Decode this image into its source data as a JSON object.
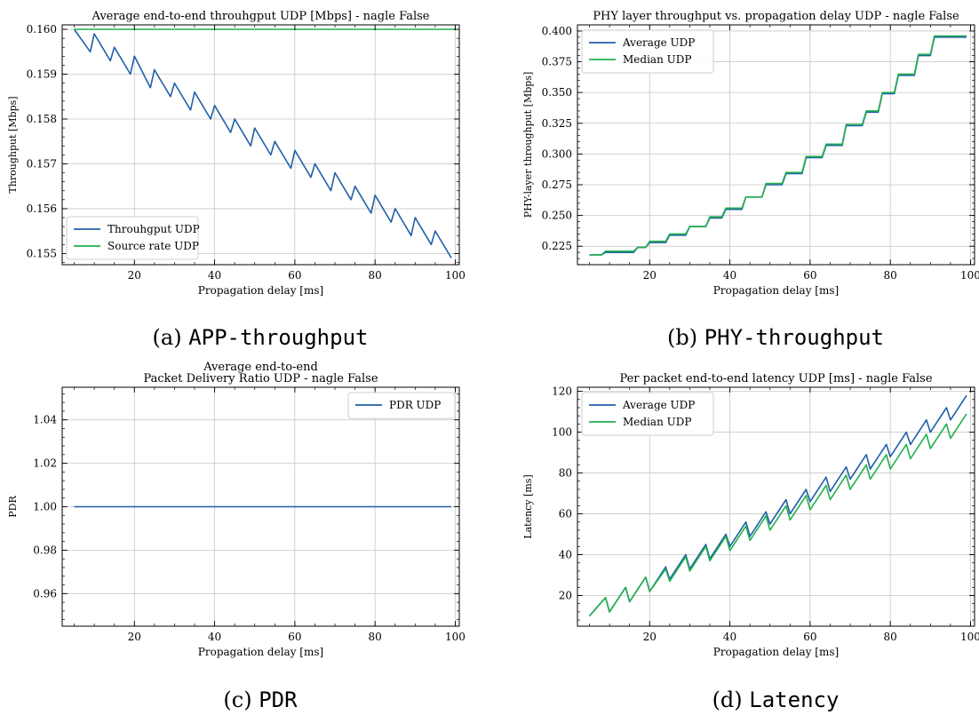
{
  "chart_data": [
    {
      "type": "line",
      "title": "Average end-to-end throuhgput UDP [Mbps] - nagle False",
      "caption_prefix": "(a)",
      "caption_code": "APP-throughput",
      "xlabel": "Propagation delay [ms]",
      "ylabel": "Throughput [Mbps]",
      "xlim": [
        2,
        101
      ],
      "ylim": [
        0.15475,
        0.1601
      ],
      "xticks": [
        20,
        40,
        60,
        80,
        100
      ],
      "yticks": [
        0.155,
        0.156,
        0.157,
        0.158,
        0.159,
        0.16
      ],
      "ytick_labels": [
        "0.155",
        "0.156",
        "0.157",
        "0.158",
        "0.159",
        "0.160"
      ],
      "grid": true,
      "legend_position": "lower-left",
      "series": [
        {
          "name": "Throuhgput UDP",
          "color": "#1f5fa8",
          "x": [
            5,
            9,
            10,
            14,
            15,
            19,
            20,
            24,
            25,
            29,
            30,
            34,
            35,
            39,
            40,
            44,
            45,
            49,
            50,
            54,
            55,
            59,
            60,
            64,
            65,
            69,
            70,
            74,
            75,
            79,
            80,
            84,
            85,
            89,
            90,
            94,
            95,
            99
          ],
          "y": [
            0.16,
            0.1595,
            0.1599,
            0.1593,
            0.1596,
            0.159,
            0.1594,
            0.1587,
            0.1591,
            0.1585,
            0.1588,
            0.1582,
            0.1586,
            0.158,
            0.1583,
            0.1577,
            0.158,
            0.1574,
            0.1578,
            0.1572,
            0.1575,
            0.1569,
            0.1573,
            0.1567,
            0.157,
            0.1564,
            0.1568,
            0.1562,
            0.1565,
            0.1559,
            0.1563,
            0.1557,
            0.156,
            0.1554,
            0.1558,
            0.1552,
            0.1555,
            0.1549
          ]
        },
        {
          "name": "Source rate UDP",
          "color": "#22b14c",
          "x": [
            5,
            100
          ],
          "y": [
            0.16,
            0.16
          ]
        }
      ]
    },
    {
      "type": "line",
      "title": "PHY layer throughput vs. propagation delay UDP - nagle False",
      "caption_prefix": "(b)",
      "caption_code": "PHY-throughput",
      "xlabel": "Propagation delay [ms]",
      "ylabel": "PHY-layer throughput [Mbps]",
      "xlim": [
        2,
        101
      ],
      "ylim": [
        0.21,
        0.405
      ],
      "xticks": [
        20,
        40,
        60,
        80,
        100
      ],
      "yticks": [
        0.225,
        0.25,
        0.275,
        0.3,
        0.325,
        0.35,
        0.375,
        0.4
      ],
      "ytick_labels": [
        "0.225",
        "0.250",
        "0.275",
        "0.300",
        "0.325",
        "0.350",
        "0.375",
        "0.400"
      ],
      "grid": true,
      "legend_position": "top-left",
      "series": [
        {
          "name": "Average UDP",
          "color": "#1f5fa8",
          "x": [
            5,
            8,
            9,
            13,
            14,
            16,
            17,
            19,
            20,
            24,
            25,
            29,
            30,
            34,
            35,
            38,
            39,
            43,
            44,
            48,
            49,
            53,
            54,
            58,
            59,
            63,
            64,
            68,
            69,
            73,
            74,
            77,
            78,
            81,
            82,
            86,
            87,
            90,
            91,
            95,
            96,
            99
          ],
          "y": [
            0.218,
            0.218,
            0.22,
            0.22,
            0.22,
            0.22,
            0.224,
            0.224,
            0.228,
            0.228,
            0.234,
            0.234,
            0.241,
            0.241,
            0.248,
            0.248,
            0.255,
            0.255,
            0.265,
            0.265,
            0.275,
            0.275,
            0.284,
            0.284,
            0.297,
            0.297,
            0.307,
            0.307,
            0.323,
            0.323,
            0.334,
            0.334,
            0.349,
            0.349,
            0.364,
            0.364,
            0.38,
            0.38,
            0.395,
            0.395,
            0.395,
            0.395
          ]
        },
        {
          "name": "Median UDP",
          "color": "#22b14c",
          "x": [
            5,
            8,
            9,
            13,
            14,
            16,
            17,
            19,
            20,
            24,
            25,
            29,
            30,
            34,
            35,
            38,
            39,
            43,
            44,
            48,
            49,
            53,
            54,
            58,
            59,
            63,
            64,
            68,
            69,
            73,
            74,
            77,
            78,
            81,
            82,
            86,
            87,
            90,
            91,
            95,
            96,
            99
          ],
          "y": [
            0.218,
            0.218,
            0.221,
            0.221,
            0.221,
            0.221,
            0.224,
            0.224,
            0.229,
            0.229,
            0.235,
            0.235,
            0.241,
            0.241,
            0.249,
            0.249,
            0.256,
            0.256,
            0.265,
            0.265,
            0.276,
            0.276,
            0.285,
            0.285,
            0.298,
            0.298,
            0.308,
            0.308,
            0.324,
            0.324,
            0.335,
            0.335,
            0.35,
            0.35,
            0.365,
            0.365,
            0.381,
            0.381,
            0.396,
            0.396,
            0.396,
            0.396
          ]
        }
      ]
    },
    {
      "type": "line",
      "title": "Average end-to-end\nPacket Delivery Ratio UDP - nagle False",
      "caption_prefix": "(c)",
      "caption_code": "PDR",
      "xlabel": "Propagation delay [ms]",
      "ylabel": "PDR",
      "xlim": [
        2,
        101
      ],
      "ylim": [
        0.945,
        1.055
      ],
      "xticks": [
        20,
        40,
        60,
        80,
        100
      ],
      "yticks": [
        0.96,
        0.98,
        1.0,
        1.02,
        1.04
      ],
      "ytick_labels": [
        "0.96",
        "0.98",
        "1.00",
        "1.02",
        "1.04"
      ],
      "grid": true,
      "legend_position": "top-right",
      "series": [
        {
          "name": "PDR UDP",
          "color": "#1f5fa8",
          "x": [
            5,
            99
          ],
          "y": [
            1.0,
            1.0
          ]
        }
      ]
    },
    {
      "type": "line",
      "title": "Per packet end-to-end latency UDP [ms] - nagle False",
      "caption_prefix": "(d)",
      "caption_code": "Latency",
      "xlabel": "Propagation delay [ms]",
      "ylabel": "Latency [ms]",
      "xlim": [
        2,
        101
      ],
      "ylim": [
        5,
        122
      ],
      "xticks": [
        20,
        40,
        60,
        80,
        100
      ],
      "yticks": [
        20,
        40,
        60,
        80,
        100,
        120
      ],
      "ytick_labels": [
        "20",
        "40",
        "60",
        "80",
        "100",
        "120"
      ],
      "grid": true,
      "legend_position": "top-left",
      "series": [
        {
          "name": "Average UDP",
          "color": "#1f5fa8",
          "x": [
            5,
            9,
            10,
            14,
            15,
            19,
            20,
            24,
            25,
            29,
            30,
            34,
            35,
            39,
            40,
            44,
            45,
            49,
            50,
            54,
            55,
            59,
            60,
            64,
            65,
            69,
            70,
            74,
            75,
            79,
            80,
            84,
            85,
            89,
            90,
            94,
            95,
            99
          ],
          "y": [
            10,
            19,
            12,
            24,
            17,
            29,
            22,
            34,
            28,
            40,
            33,
            45,
            38,
            50,
            44,
            56,
            49,
            61,
            55,
            67,
            60,
            72,
            66,
            78,
            71,
            83,
            77,
            89,
            82,
            94,
            88,
            100,
            94,
            106,
            100,
            112,
            106,
            118
          ]
        },
        {
          "name": "Median UDP",
          "color": "#22b14c",
          "x": [
            5,
            9,
            10,
            14,
            15,
            19,
            20,
            24,
            25,
            29,
            30,
            34,
            35,
            39,
            40,
            44,
            45,
            49,
            50,
            54,
            55,
            59,
            60,
            64,
            65,
            69,
            70,
            74,
            75,
            79,
            80,
            84,
            85,
            89,
            90,
            94,
            95,
            99
          ],
          "y": [
            10,
            19,
            12,
            24,
            17,
            29,
            22,
            33,
            27,
            39,
            32,
            44,
            37,
            49,
            42,
            54,
            47,
            59,
            52,
            64,
            57,
            69,
            62,
            74,
            67,
            79,
            72,
            84,
            77,
            89,
            82,
            94,
            87,
            99,
            92,
            104,
            97,
            109
          ]
        }
      ]
    }
  ]
}
